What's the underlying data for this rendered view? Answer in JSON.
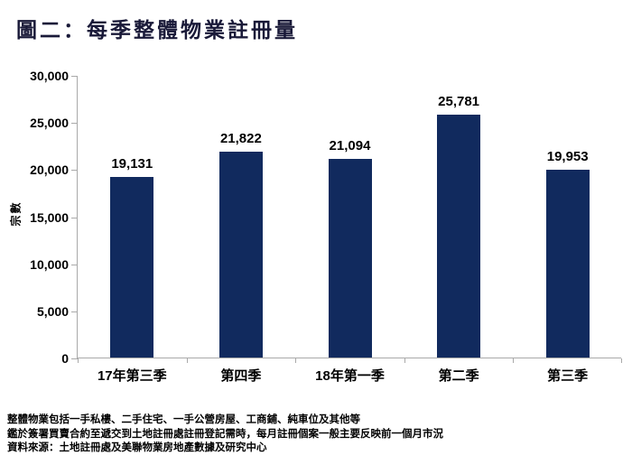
{
  "title": "圖二：每季整體物業註冊量",
  "colors": {
    "bar": "#112a5e",
    "axis": "#a9a9a9",
    "title_text": "#191938",
    "label_text": "#000000"
  },
  "chart_data": {
    "type": "bar",
    "title": "圖二：每季整體物業註冊量",
    "categories": [
      "17年第三季",
      "第四季",
      "18年第一季",
      "第二季",
      "第三季"
    ],
    "values": [
      19131,
      21822,
      21094,
      25781,
      19953
    ],
    "value_labels": [
      "19,131",
      "21,822",
      "21,094",
      "25,781",
      "19,953"
    ],
    "xlabel": "",
    "ylabel": "宗數",
    "ylim": [
      0,
      30000
    ],
    "yticks": [
      0,
      5000,
      10000,
      15000,
      20000,
      25000,
      30000
    ],
    "ytick_labels": [
      "0",
      "5,000",
      "10,000",
      "15,000",
      "20,000",
      "25,000",
      "30,000"
    ],
    "grid": false,
    "legend": "none",
    "bar_color": "#112a5e"
  },
  "footnotes": [
    "整體物業包括一手私樓、二手住宅、一手公營房屋、工商鋪、純車位及其他等",
    "鑑於簽署買賣合約至遞交到土地註冊處註冊登記需時，每月註冊個案一般主要反映前一個月市況",
    "資料來源：土地註冊處及美聯物業房地產數據及研究中心"
  ]
}
